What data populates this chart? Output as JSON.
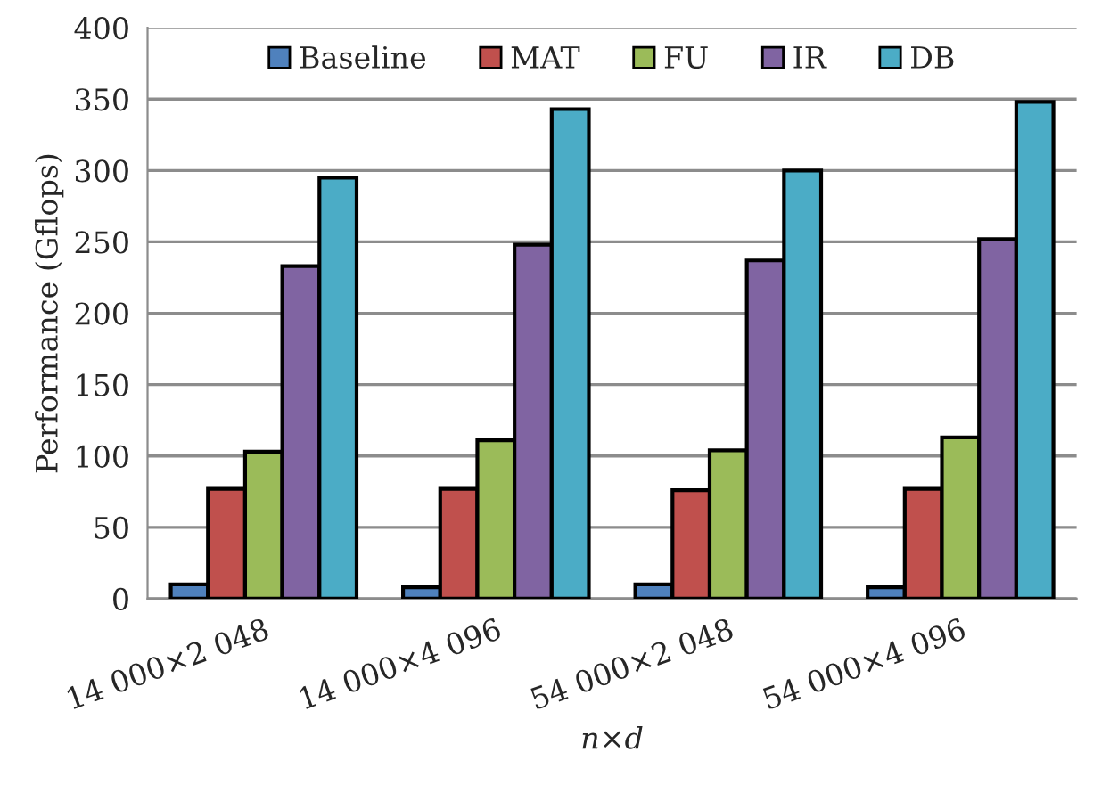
{
  "chart_data": {
    "type": "bar",
    "xlabel": "n×d",
    "ylabel": "Performance (Gflops)",
    "categories": [
      "14 000×2 048",
      "14 000×4 096",
      "54 000×2 048",
      "54 000×4 096"
    ],
    "series": [
      {
        "name": "Baseline",
        "color": "#4f81bd",
        "values": [
          10,
          8,
          10,
          8
        ]
      },
      {
        "name": "MAT",
        "color": "#c0504d",
        "values": [
          77,
          77,
          76,
          77
        ]
      },
      {
        "name": "FU",
        "color": "#9bbb59",
        "values": [
          103,
          111,
          104,
          113
        ]
      },
      {
        "name": "IR",
        "color": "#8064a2",
        "values": [
          233,
          248,
          237,
          252
        ]
      },
      {
        "name": "DB",
        "color": "#4bacc6",
        "values": [
          295,
          343,
          300,
          348
        ]
      }
    ],
    "ylim": [
      0,
      400
    ],
    "yticks": [
      0,
      50,
      100,
      150,
      200,
      250,
      300,
      350,
      400
    ],
    "grid": "y",
    "legend": "top"
  }
}
